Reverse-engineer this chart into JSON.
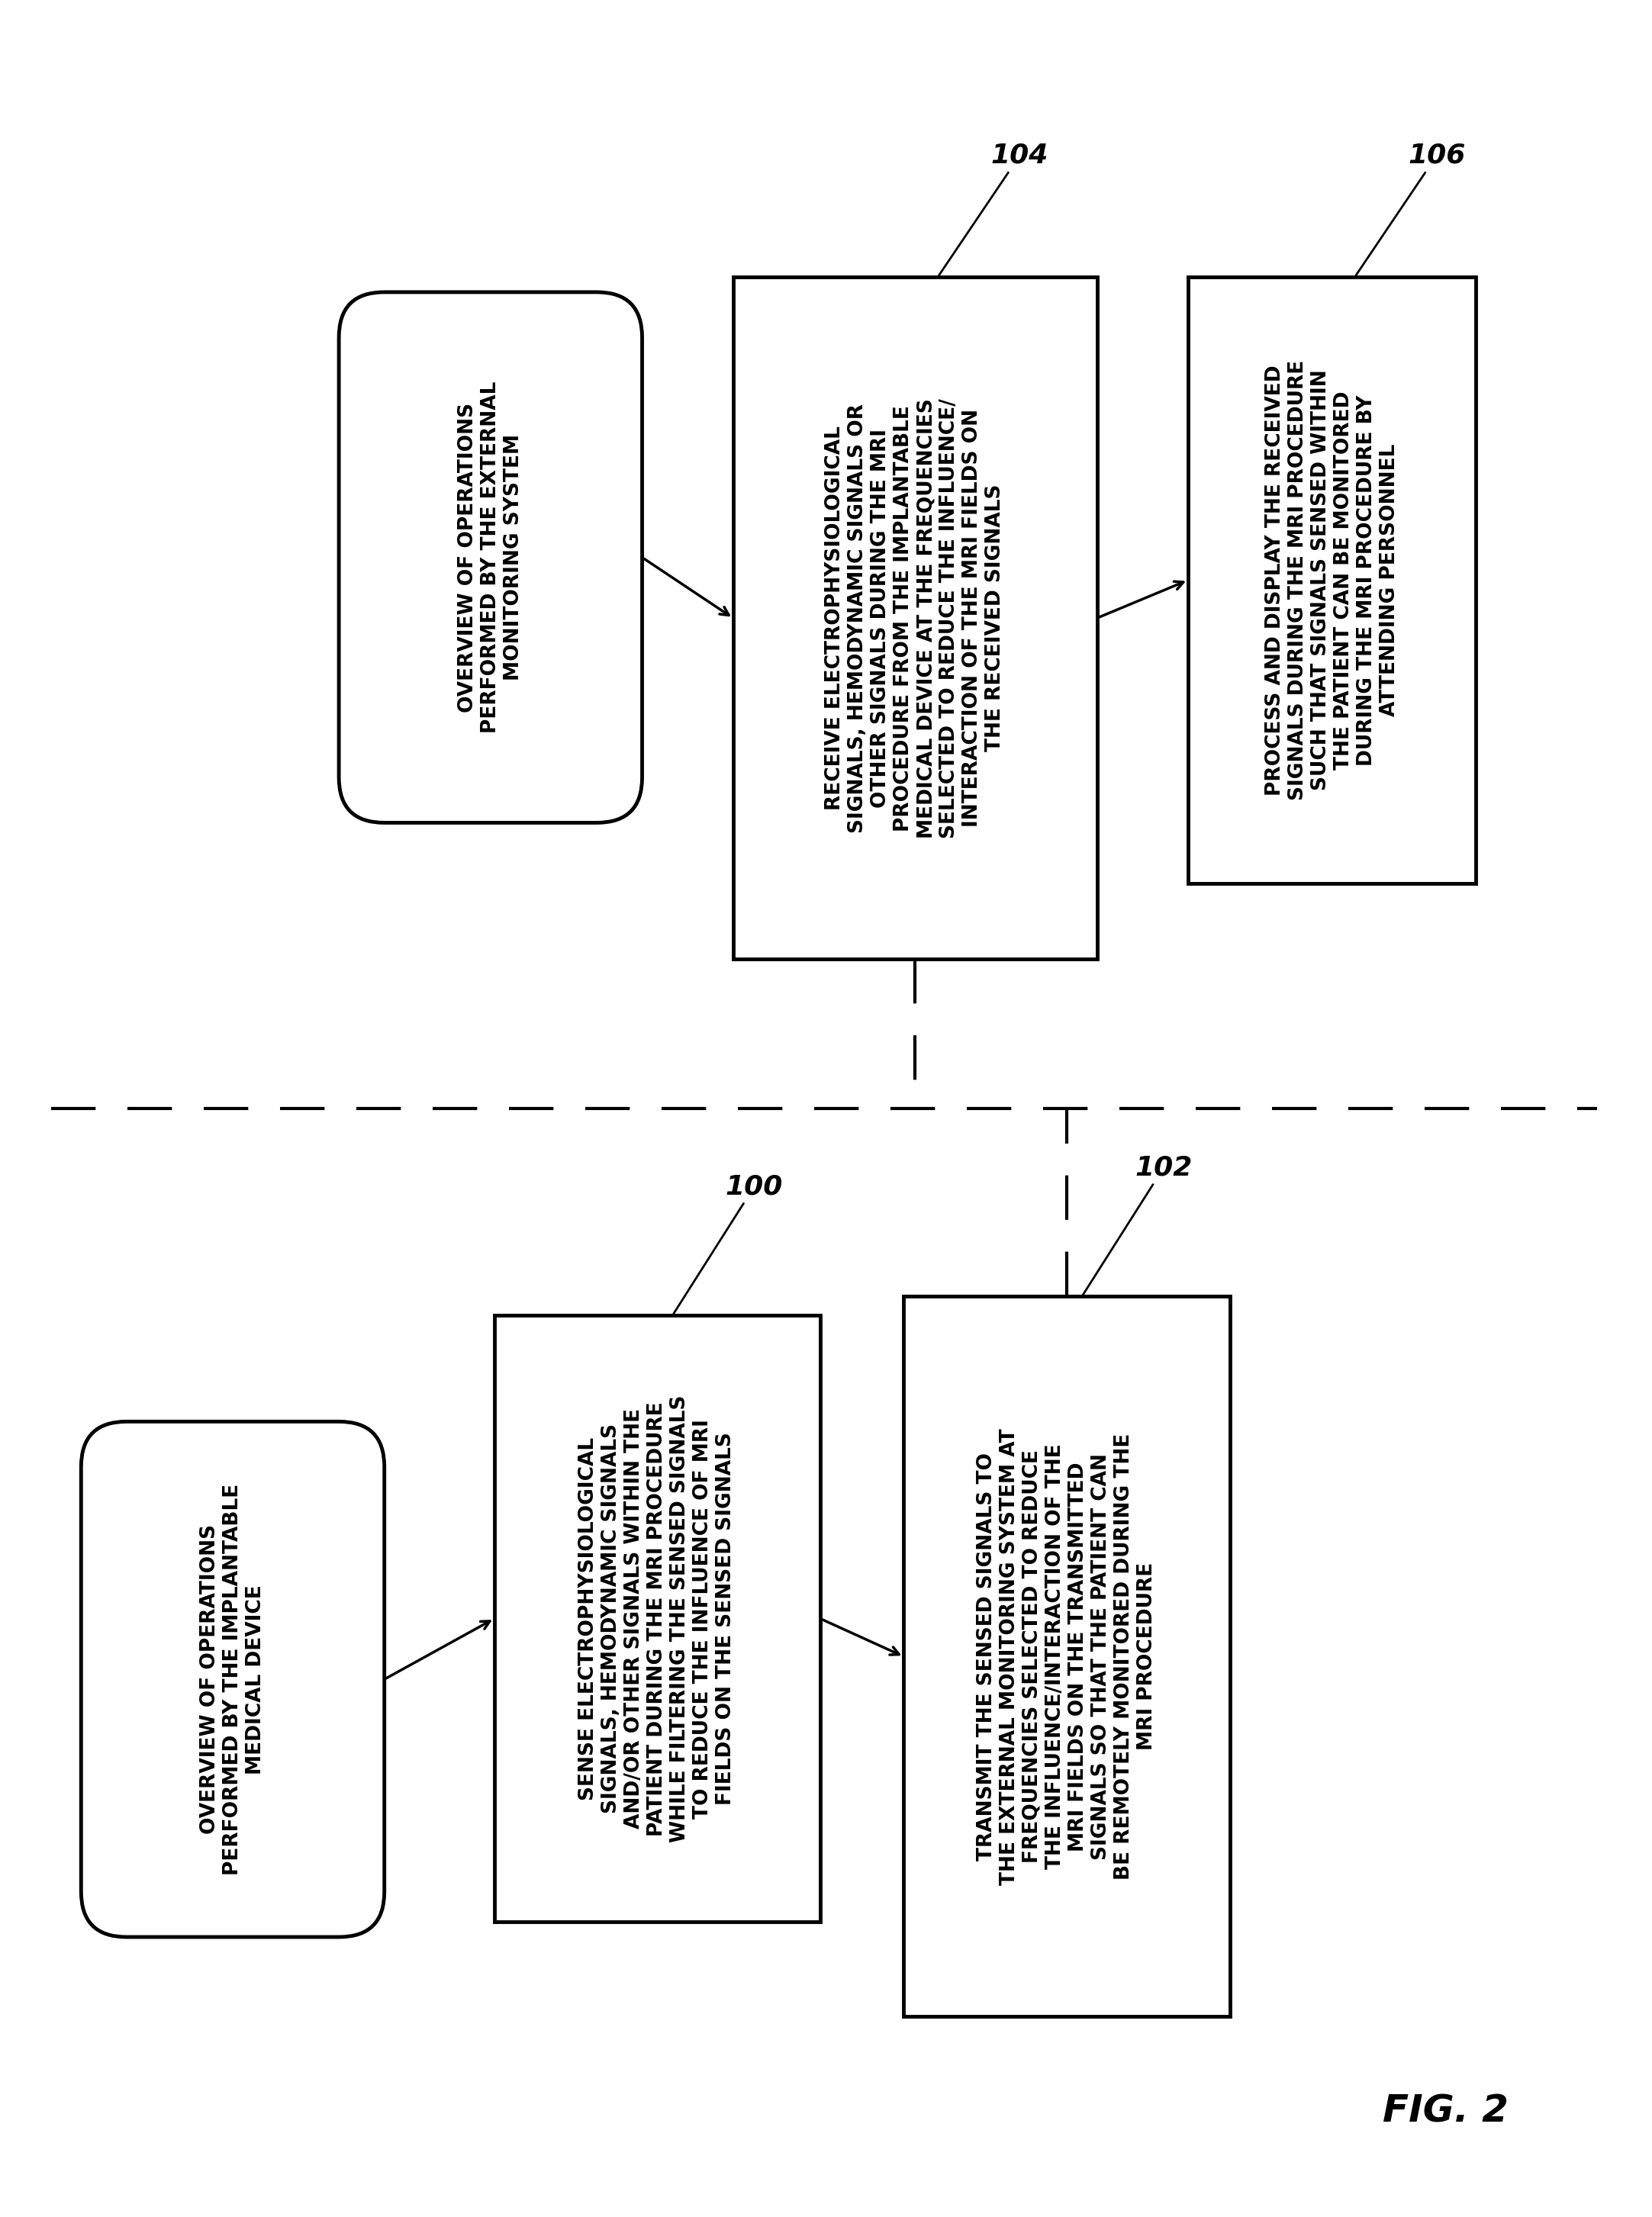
{
  "bg_color": "#ffffff",
  "fig_width": 21.65,
  "fig_height": 29.06,
  "top_section_label": "OVERVIEW OF OPERATIONS\nPERFORMED BY THE EXTERNAL\nMONITORING SYSTEM",
  "bottom_section_label": "OVERVIEW OF OPERATIONS\nPERFORMED BY THE IMPLANTABLE\nMEDICAL DEVICE",
  "box104_text": "RECEIVE ELECTROPHYSIOLOGICAL\nSIGNALS, HEMODYNAMIC SIGNALS OR\nOTHER SIGNALS DURING THE MRI\nPROCEDURE FROM THE IMPLANTABLE\nMEDICAL DEVICE AT THE FREQUENCIES\nSELECTED TO REDUCE THE INFLUENCE/\nINTERACTION OF THE MRI FIELDS ON\nTHE RECEIVED SIGNALS",
  "label104": "104",
  "box106_text": "PROCESS AND DISPLAY THE RECEIVED\nSIGNALS DURING THE MRI PROCEDURE\nSUCH THAT SIGNALS SENSED WITHIN\nTHE PATIENT CAN BE MONITORED\nDURING THE MRI PROCEDURE BY\nATTENDING PERSONNEL",
  "label106": "106",
  "box100_text": "SENSE ELECTROPHYSIOLOGICAL\nSIGNALS, HEMODYNAMIC SIGNALS\nAND/OR OTHER SIGNALS WITHIN THE\nPATIENT DURING THE MRI PROCEDURE\nWHILE FILTERING THE SENSED SIGNALS\nTO REDUCE THE INFLUENCE OF MRI\nFIELDS ON THE SENSED SIGNALS",
  "label100": "100",
  "box102_text": "TRANSMIT THE SENSED SIGNALS TO\nTHE EXTERNAL MONITORING SYSTEM AT\nFREQUENCIES SELECTED TO REDUCE\nTHE INFLUENCE/INTERACTION OF THE\nMRI FIELDS ON THE TRANSMITTED\nSIGNALS SO THAT THE PATIENT CAN\nBE REMOTELY MONITORED DURING THE\nMRI PROCEDURE",
  "label102": "102",
  "fig_label": "FIG. 2"
}
